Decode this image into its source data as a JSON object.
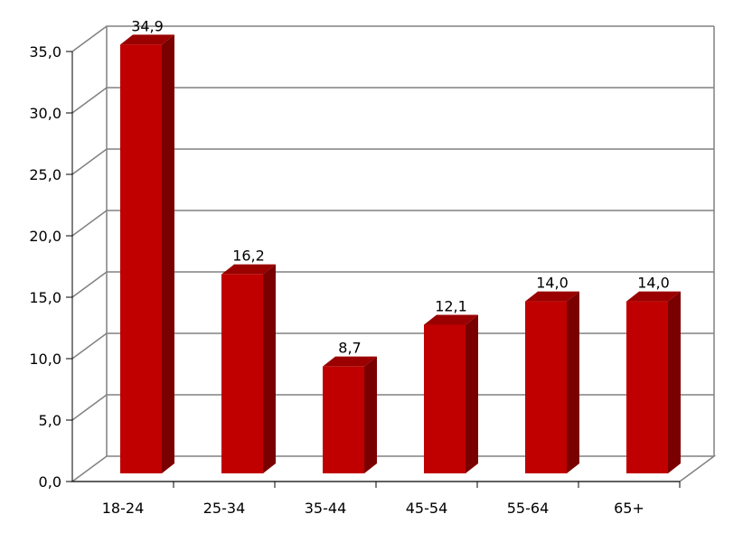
{
  "chart_data": {
    "type": "bar",
    "title": "",
    "xlabel": "",
    "ylabel": "",
    "categories": [
      "18-24",
      "25-34",
      "35-44",
      "45-54",
      "55-64",
      "65+"
    ],
    "values": [
      34.9,
      16.2,
      8.7,
      12.1,
      14.0,
      14.0
    ],
    "value_labels": [
      "34,9",
      "16,2",
      "8,7",
      "12,1",
      "14,0",
      "14,0"
    ],
    "y_ticks": [
      "0,0",
      "5,0",
      "10,0",
      "15,0",
      "20,0",
      "25,0",
      "30,0",
      "35,0"
    ],
    "ylim": [
      0,
      35
    ],
    "grid": true,
    "legend": "none",
    "style": "3d",
    "colors": {
      "bar_front": "#c00000",
      "bar_side": "#7a0000",
      "bar_top": "#9a0000",
      "grid": "#808080",
      "axis": "#000000"
    }
  }
}
